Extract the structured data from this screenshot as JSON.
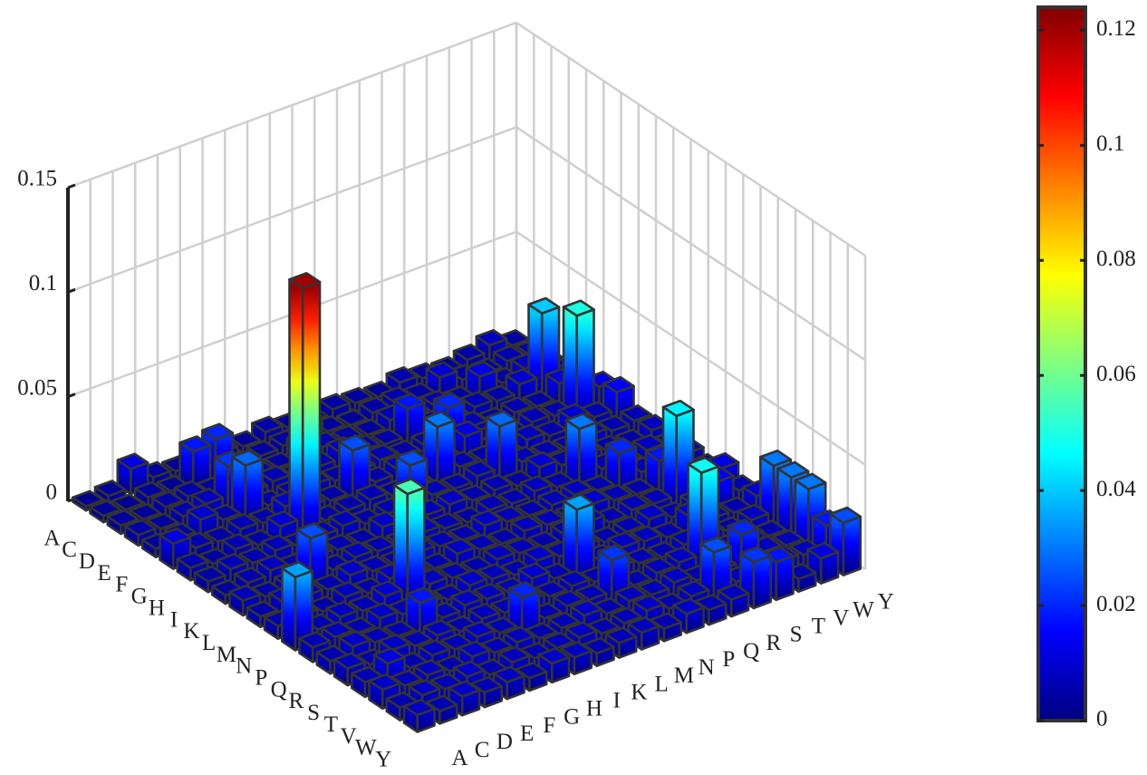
{
  "chart_data": {
    "type": "bar3d",
    "y_categories": [
      "A",
      "C",
      "D",
      "E",
      "F",
      "G",
      "H",
      "I",
      "K",
      "L",
      "M",
      "N",
      "P",
      "Q",
      "R",
      "S",
      "T",
      "V",
      "W",
      "Y"
    ],
    "x_categories": [
      "A",
      "C",
      "D",
      "E",
      "F",
      "G",
      "H",
      "I",
      "K",
      "L",
      "M",
      "N",
      "P",
      "Q",
      "R",
      "S",
      "T",
      "V",
      "W",
      "Y"
    ],
    "values": [
      [
        0.002,
        0.003,
        0.012,
        0.004,
        0.003,
        0.005,
        0.004,
        0.003,
        0.006,
        0.004,
        0.003,
        0.005,
        0.004,
        0.003,
        0.006,
        0.004,
        0.003,
        0.005,
        0.008,
        0.004
      ],
      [
        0.003,
        0.002,
        0.004,
        0.003,
        0.018,
        0.02,
        0.003,
        0.004,
        0.005,
        0.012,
        0.004,
        0.003,
        0.005,
        0.006,
        0.004,
        0.01,
        0.005,
        0.004,
        0.006,
        0.005
      ],
      [
        0.004,
        0.003,
        0.005,
        0.006,
        0.004,
        0.008,
        0.005,
        0.004,
        0.01,
        0.006,
        0.005,
        0.004,
        0.007,
        0.005,
        0.006,
        0.004,
        0.012,
        0.005,
        0.008,
        0.006
      ],
      [
        0.005,
        0.004,
        0.006,
        0.008,
        0.022,
        0.006,
        0.007,
        0.005,
        0.006,
        0.009,
        0.006,
        0.005,
        0.018,
        0.006,
        0.005,
        0.007,
        0.006,
        0.01,
        0.04,
        0.005
      ],
      [
        0.004,
        0.005,
        0.01,
        0.006,
        0.028,
        0.005,
        0.006,
        0.007,
        0.005,
        0.006,
        0.007,
        0.005,
        0.006,
        0.02,
        0.007,
        0.005,
        0.006,
        0.005,
        0.012,
        0.006
      ],
      [
        0.012,
        0.006,
        0.005,
        0.007,
        0.006,
        0.01,
        0.006,
        0.005,
        0.025,
        0.006,
        0.008,
        0.006,
        0.005,
        0.012,
        0.006,
        0.005,
        0.007,
        0.006,
        0.05,
        0.012
      ],
      [
        0.006,
        0.004,
        0.007,
        0.005,
        0.01,
        0.12,
        0.005,
        0.006,
        0.007,
        0.005,
        0.006,
        0.03,
        0.007,
        0.006,
        0.005,
        0.008,
        0.006,
        0.01,
        0.007,
        0.015
      ],
      [
        0.005,
        0.007,
        0.006,
        0.008,
        0.006,
        0.007,
        0.008,
        0.005,
        0.006,
        0.025,
        0.007,
        0.006,
        0.008,
        0.028,
        0.007,
        0.006,
        0.005,
        0.008,
        0.006,
        0.007
      ],
      [
        0.004,
        0.006,
        0.008,
        0.005,
        0.007,
        0.006,
        0.005,
        0.009,
        0.006,
        0.007,
        0.008,
        0.006,
        0.007,
        0.005,
        0.01,
        0.007,
        0.008,
        0.006,
        0.005,
        0.008
      ],
      [
        0.007,
        0.005,
        0.006,
        0.025,
        0.006,
        0.008,
        0.007,
        0.006,
        0.008,
        0.006,
        0.005,
        0.007,
        0.006,
        0.008,
        0.006,
        0.03,
        0.007,
        0.006,
        0.008,
        0.006
      ],
      [
        0.005,
        0.008,
        0.007,
        0.006,
        0.009,
        0.007,
        0.006,
        0.008,
        0.007,
        0.006,
        0.009,
        0.007,
        0.006,
        0.007,
        0.008,
        0.006,
        0.02,
        0.007,
        0.006,
        0.008
      ],
      [
        0.006,
        0.007,
        0.005,
        0.008,
        0.006,
        0.009,
        0.007,
        0.006,
        0.009,
        0.007,
        0.006,
        0.008,
        0.007,
        0.006,
        0.009,
        0.007,
        0.006,
        0.018,
        0.007,
        0.006
      ],
      [
        0.035,
        0.006,
        0.008,
        0.007,
        0.01,
        0.055,
        0.008,
        0.007,
        0.006,
        0.008,
        0.007,
        0.006,
        0.008,
        0.01,
        0.006,
        0.008,
        0.007,
        0.045,
        0.006,
        0.012
      ],
      [
        0.007,
        0.008,
        0.006,
        0.009,
        0.007,
        0.008,
        0.006,
        0.009,
        0.008,
        0.006,
        0.009,
        0.007,
        0.008,
        0.006,
        0.007,
        0.009,
        0.006,
        0.008,
        0.015,
        0.007
      ],
      [
        0.006,
        0.009,
        0.007,
        0.006,
        0.018,
        0.007,
        0.009,
        0.008,
        0.007,
        0.01,
        0.006,
        0.035,
        0.007,
        0.009,
        0.008,
        0.006,
        0.012,
        0.007,
        0.006,
        0.01
      ],
      [
        0.008,
        0.006,
        0.009,
        0.007,
        0.008,
        0.006,
        0.008,
        0.007,
        0.009,
        0.007,
        0.008,
        0.006,
        0.009,
        0.007,
        0.006,
        0.008,
        0.009,
        0.006,
        0.008,
        0.03
      ],
      [
        0.007,
        0.012,
        0.006,
        0.008,
        0.007,
        0.009,
        0.007,
        0.02,
        0.006,
        0.008,
        0.007,
        0.022,
        0.006,
        0.008,
        0.009,
        0.048,
        0.007,
        0.009,
        0.006,
        0.03
      ],
      [
        0.009,
        0.007,
        0.008,
        0.006,
        0.009,
        0.007,
        0.008,
        0.006,
        0.007,
        0.009,
        0.006,
        0.008,
        0.007,
        0.009,
        0.006,
        0.007,
        0.02,
        0.008,
        0.007,
        0.03
      ],
      [
        0.006,
        0.008,
        0.007,
        0.009,
        0.006,
        0.008,
        0.006,
        0.007,
        0.008,
        0.006,
        0.007,
        0.009,
        0.006,
        0.008,
        0.025,
        0.007,
        0.006,
        0.009,
        0.008,
        0.018
      ],
      [
        0.008,
        0.006,
        0.009,
        0.007,
        0.008,
        0.006,
        0.009,
        0.008,
        0.006,
        0.007,
        0.008,
        0.006,
        0.009,
        0.007,
        0.008,
        0.022,
        0.018,
        0.006,
        0.012,
        0.025
      ]
    ],
    "zlim": [
      0,
      0.15
    ],
    "zticks": [
      0,
      0.05,
      0.1,
      0.15
    ],
    "grid": true,
    "colormap": "jet",
    "edge_color": "#333333",
    "colorbar": {
      "lim": [
        0,
        0.124
      ],
      "ticks": [
        0,
        0.02,
        0.04,
        0.06,
        0.08,
        0.1,
        0.12
      ]
    }
  }
}
